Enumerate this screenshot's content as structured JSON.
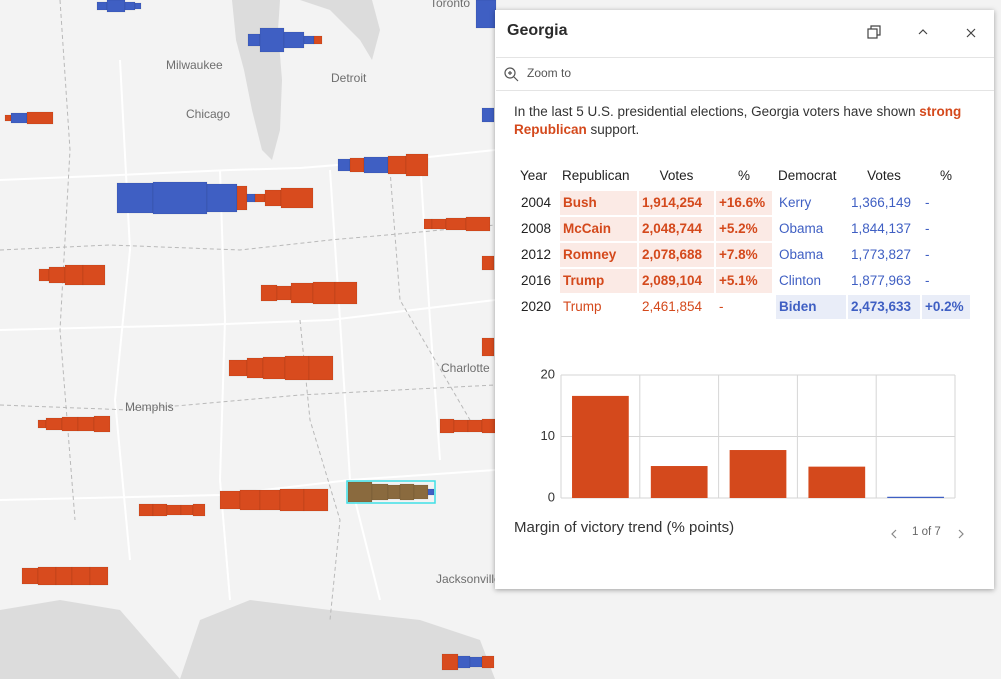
{
  "map": {
    "labels": [
      "Toronto",
      "Milwaukee",
      "Detroit",
      "Chicago",
      "Memphis",
      "Charlotte",
      "Jacksonville"
    ]
  },
  "popup": {
    "title": "Georgia",
    "zoom_to": "Zoom to",
    "description": [
      "In the last 5 U.S. presidential elections, Georgia voters have shown ",
      "strong Republican",
      " support."
    ],
    "table": {
      "headers": [
        "Year",
        "Republican",
        "Votes",
        "%",
        "Democrat",
        "Votes",
        "%"
      ],
      "rows": [
        {
          "cells": [
            "2004",
            "Bush",
            "1,914,254",
            "+16.6%",
            "Kerry",
            "1,366,149",
            "-"
          ],
          "winner": "rep"
        },
        {
          "cells": [
            "2008",
            "McCain",
            "2,048,744",
            "+5.2%",
            "Obama",
            "1,844,137",
            "-"
          ],
          "winner": "rep"
        },
        {
          "cells": [
            "2012",
            "Romney",
            "2,078,688",
            "+7.8%",
            "Obama",
            "1,773,827",
            "-"
          ],
          "winner": "rep"
        },
        {
          "cells": [
            "2016",
            "Trump",
            "2,089,104",
            "+5.1%",
            "Clinton",
            "1,877,963",
            "-"
          ],
          "winner": "rep"
        },
        {
          "cells": [
            "2020",
            "Trump",
            "2,461,854",
            "-",
            "Biden",
            "2,473,633",
            "+0.2%"
          ],
          "winner": "dem"
        }
      ]
    },
    "pager": "1 of 7"
  },
  "chart_data": {
    "type": "bar",
    "title": "Margin of victory trend (% points)",
    "categories": [
      null,
      null,
      null,
      null,
      null
    ],
    "values": [
      16.6,
      5.2,
      7.8,
      5.1,
      0.2
    ],
    "colors": [
      "#d4491c",
      "#d4491c",
      "#d4491c",
      "#d4491c",
      "#3f5fc3"
    ],
    "ylim": [
      0,
      20
    ],
    "yticks": [
      0,
      10,
      20
    ],
    "grid": true
  }
}
